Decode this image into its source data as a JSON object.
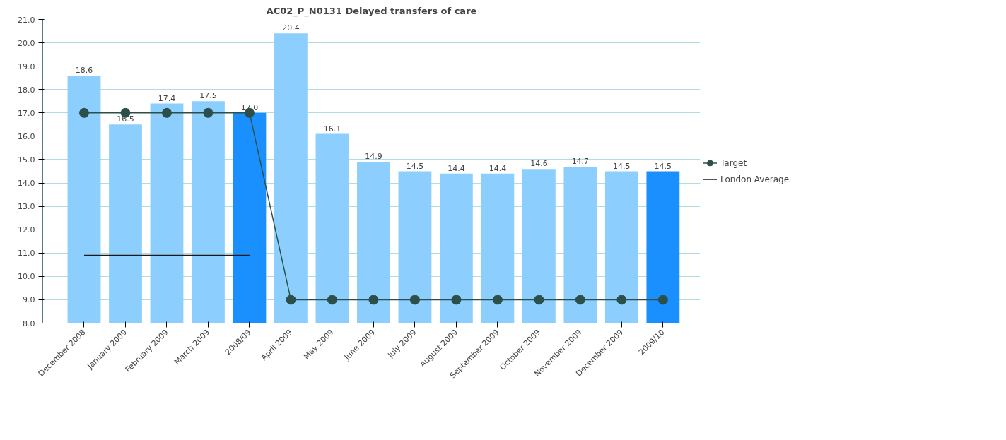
{
  "chart_data": {
    "type": "bar",
    "title": "AC02_P_N0131 Delayed transfers of care",
    "categories": [
      "December 2008",
      "January 2009",
      "February 2009",
      "March 2009",
      "2008/09",
      "April 2009",
      "May 2009",
      "June 2009",
      "July 2009",
      "August 2009",
      "September 2009",
      "October 2009",
      "November 2009",
      "December 2009",
      "2009/10"
    ],
    "series": [
      {
        "colors": [
          "#8ccfff",
          "#8ccfff",
          "#8ccfff",
          "#8ccfff",
          "#1a90ff",
          "#8ccfff",
          "#8ccfff",
          "#8ccfff",
          "#8ccfff",
          "#8ccfff",
          "#8ccfff",
          "#8ccfff",
          "#8ccfff",
          "#8ccfff",
          "#1a90ff"
        ],
        "values": [
          18.6,
          16.5,
          17.4,
          17.5,
          17.0,
          20.4,
          16.1,
          14.9,
          14.5,
          14.4,
          14.4,
          14.6,
          14.7,
          14.5,
          14.5
        ],
        "value_labels": [
          "18.6",
          "16.5",
          "17.4",
          "17.5",
          "17.0",
          "20.4",
          "16.1",
          "14.9",
          "14.5",
          "14.4",
          "14.4",
          "14.6",
          "14.7",
          "14.5",
          "14.5"
        ]
      },
      {
        "type": "line",
        "name": "Target",
        "color": "#2d4f4a",
        "marker": "circle",
        "values": [
          17,
          17,
          17,
          17,
          17,
          9,
          9,
          9,
          9,
          9,
          9,
          9,
          9,
          9,
          9
        ]
      },
      {
        "type": "line",
        "name": "London Average",
        "color": "#1a1a1a",
        "marker": "none",
        "values": [
          10.9,
          10.9,
          10.9,
          10.9,
          10.9,
          null,
          null,
          null,
          null,
          null,
          null,
          null,
          null,
          null,
          null
        ]
      }
    ],
    "ylim": [
      8,
      21
    ],
    "yticks": [
      {
        "value": 8,
        "label": "8.0"
      },
      {
        "value": 9,
        "label": "9.0"
      },
      {
        "value": 10,
        "label": "10.0"
      },
      {
        "value": 11,
        "label": "11.0"
      },
      {
        "value": 12,
        "label": "12.0"
      },
      {
        "value": 13,
        "label": "13.0"
      },
      {
        "value": 14,
        "label": "14.0"
      },
      {
        "value": 15,
        "label": "15.0"
      },
      {
        "value": 16,
        "label": "16.0"
      },
      {
        "value": 17,
        "label": "17.0"
      },
      {
        "value": 18,
        "label": "18.0"
      },
      {
        "value": 19,
        "label": "19.0"
      },
      {
        "value": 20,
        "label": "20.0"
      },
      {
        "value": 21,
        "label": "21.0"
      }
    ],
    "grid": "y",
    "legend": "right"
  }
}
